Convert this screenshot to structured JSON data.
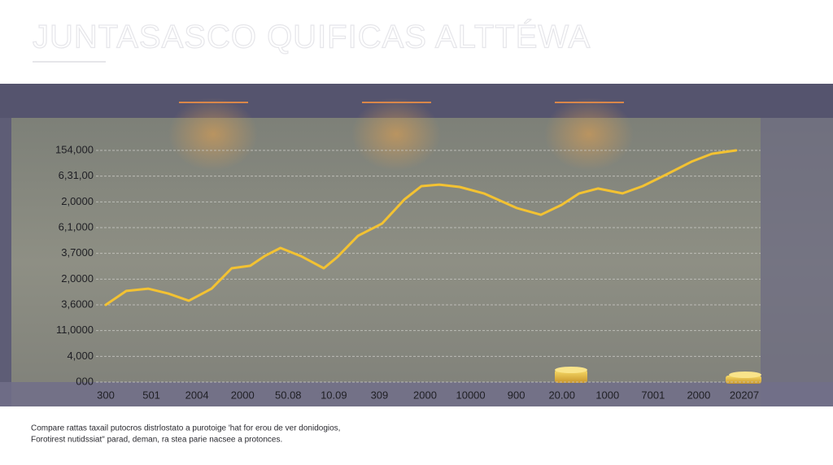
{
  "chart_data": {
    "type": "line",
    "title": "JUNTASASCO QUIFICAS ALTTÉWA",
    "caption": [
      "Compare rattas taxail putocros distrlostato a purotoige 'hat for erou de ver donidogios,",
      "Forotirest nutidssiat\" parad, deman, ra stea parie nacsee a protonces."
    ],
    "xlim": [
      0,
      14
    ],
    "xticks": [
      {
        "value": 0,
        "label": "300"
      },
      {
        "value": 1,
        "label": "501"
      },
      {
        "value": 2,
        "label": "2004"
      },
      {
        "value": 3,
        "label": "2000"
      },
      {
        "value": 4,
        "label": "50.08"
      },
      {
        "value": 5,
        "label": "10.09"
      },
      {
        "value": 6,
        "label": "309"
      },
      {
        "value": 7,
        "label": "2000"
      },
      {
        "value": 8,
        "label": "10000"
      },
      {
        "value": 9,
        "label": "900"
      },
      {
        "value": 10,
        "label": "20.00"
      },
      {
        "value": 11,
        "label": "1000"
      },
      {
        "value": 12,
        "label": "7001"
      },
      {
        "value": 13,
        "label": "2000"
      },
      {
        "value": 14,
        "label": "20207"
      }
    ],
    "ylim": [
      0,
      9
    ],
    "yticks": [
      {
        "value": 0,
        "label": "000"
      },
      {
        "value": 1,
        "label": "4,000"
      },
      {
        "value": 2,
        "label": "11,0000"
      },
      {
        "value": 3,
        "label": "3,6000"
      },
      {
        "value": 4,
        "label": "2,0000"
      },
      {
        "value": 5,
        "label": "3,7000"
      },
      {
        "value": 6,
        "label": "6,1,000"
      },
      {
        "value": 7,
        "label": "2,0000"
      },
      {
        "value": 8,
        "label": "6,31,00"
      },
      {
        "value": 9,
        "label": "154,000"
      }
    ],
    "grid": true,
    "series": [
      {
        "color": "#f3c232",
        "x": [
          0,
          0.45,
          0.93,
          1.37,
          1.82,
          2.32,
          2.76,
          3.17,
          3.48,
          3.83,
          4.28,
          4.78,
          5.08,
          5.53,
          6.06,
          6.55,
          6.92,
          7.31,
          7.76,
          8.29,
          9.01,
          9.54,
          9.99,
          10.38,
          10.79,
          11.33,
          11.77,
          12.31,
          12.84,
          13.29,
          13.82
        ],
        "values": [
          3.0,
          3.54,
          3.63,
          3.44,
          3.16,
          3.63,
          4.42,
          4.52,
          4.89,
          5.21,
          4.89,
          4.42,
          4.86,
          5.68,
          6.16,
          7.1,
          7.61,
          7.67,
          7.58,
          7.33,
          6.76,
          6.5,
          6.88,
          7.33,
          7.52,
          7.33,
          7.61,
          8.08,
          8.56,
          8.87,
          9.0
        ]
      }
    ]
  }
}
